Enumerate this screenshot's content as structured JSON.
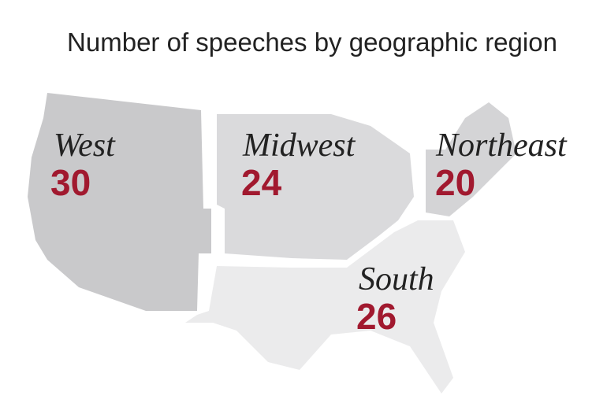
{
  "title": "Number of speeches by geographic region",
  "regions": [
    {
      "name": "West",
      "value": 30
    },
    {
      "name": "Midwest",
      "value": 24
    },
    {
      "name": "Northeast",
      "value": 20
    },
    {
      "name": "South",
      "value": 26
    }
  ]
}
